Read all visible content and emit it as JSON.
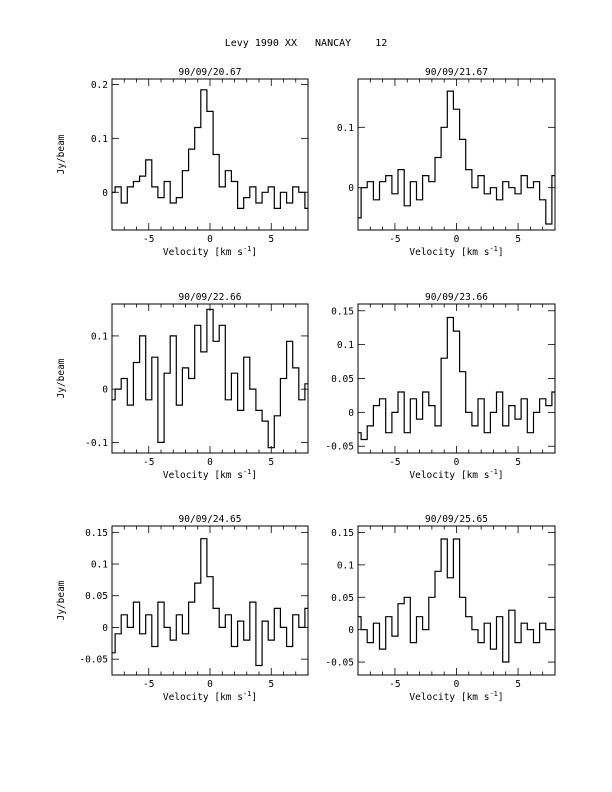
{
  "figure_title": "Levy 1990 XX   NANCAY    12",
  "chart_data": [
    {
      "type": "line",
      "title": "90/09/20.67",
      "xlabel": "Velocity [km s",
      "xlabel_sup": "-1",
      "xlabel_close": "]",
      "ylabel": "Jy/beam",
      "xlim": [
        -8,
        8
      ],
      "ylim": [
        -0.07,
        0.21
      ],
      "xticks": [
        -5,
        0,
        5
      ],
      "yticks": [
        0,
        0.1,
        0.2
      ],
      "ytick_labels": [
        "0",
        "0.1",
        "0.2"
      ],
      "series": [
        {
          "x": [
            -8,
            -7.5,
            -7,
            -6.5,
            -6,
            -5.5,
            -5,
            -4.5,
            -4,
            -3.5,
            -3,
            -2.5,
            -2,
            -1.5,
            -1,
            -0.5,
            0,
            0.5,
            1,
            1.5,
            2,
            2.5,
            3,
            3.5,
            4,
            4.5,
            5,
            5.5,
            6,
            6.5,
            7,
            7.5,
            8
          ],
          "y": [
            0.0,
            0.01,
            -0.02,
            0.01,
            0.02,
            0.03,
            0.06,
            0.01,
            -0.01,
            0.02,
            -0.02,
            -0.01,
            0.04,
            0.08,
            0.12,
            0.19,
            0.15,
            0.07,
            0.01,
            0.04,
            0.02,
            -0.03,
            -0.01,
            0.01,
            -0.02,
            0.0,
            0.01,
            -0.03,
            0.0,
            -0.02,
            0.01,
            0.0,
            -0.03
          ]
        }
      ]
    },
    {
      "type": "line",
      "title": "90/09/21.67",
      "xlabel": "Velocity [km s",
      "xlabel_sup": "-1",
      "xlabel_close": "]",
      "ylabel": "",
      "xlim": [
        -8,
        8
      ],
      "ylim": [
        -0.07,
        0.18
      ],
      "xticks": [
        -5,
        0,
        5
      ],
      "yticks": [
        0,
        0.1
      ],
      "ytick_labels": [
        "0",
        "0.1"
      ],
      "series": [
        {
          "x": [
            -8,
            -7.5,
            -7,
            -6.5,
            -6,
            -5.5,
            -5,
            -4.5,
            -4,
            -3.5,
            -3,
            -2.5,
            -2,
            -1.5,
            -1,
            -0.5,
            0,
            0.5,
            1,
            1.5,
            2,
            2.5,
            3,
            3.5,
            4,
            4.5,
            5,
            5.5,
            6,
            6.5,
            7,
            7.5,
            8
          ],
          "y": [
            -0.05,
            0.0,
            0.01,
            -0.02,
            0.01,
            0.02,
            -0.01,
            0.03,
            -0.03,
            0.01,
            -0.02,
            0.02,
            0.01,
            0.05,
            0.1,
            0.16,
            0.13,
            0.08,
            0.03,
            0.0,
            0.02,
            -0.01,
            0.0,
            -0.02,
            0.01,
            0.0,
            -0.01,
            0.02,
            0.0,
            0.01,
            -0.02,
            -0.06,
            0.02
          ]
        }
      ]
    },
    {
      "type": "line",
      "title": "90/09/22.66",
      "xlabel": "Velocity [km s",
      "xlabel_sup": "-1",
      "xlabel_close": "]",
      "ylabel": "Jy/beam",
      "xlim": [
        -8,
        8
      ],
      "ylim": [
        -0.12,
        0.16
      ],
      "xticks": [
        -5,
        0,
        5
      ],
      "yticks": [
        -0.1,
        0,
        0.1
      ],
      "ytick_labels": [
        "-0.1",
        "0",
        "0.1"
      ],
      "series": [
        {
          "x": [
            -8,
            -7.5,
            -7,
            -6.5,
            -6,
            -5.5,
            -5,
            -4.5,
            -4,
            -3.5,
            -3,
            -2.5,
            -2,
            -1.5,
            -1,
            -0.5,
            0,
            0.5,
            1,
            1.5,
            2,
            2.5,
            3,
            3.5,
            4,
            4.5,
            5,
            5.5,
            6,
            6.5,
            7,
            7.5,
            8
          ],
          "y": [
            -0.02,
            0.0,
            0.02,
            -0.03,
            0.05,
            0.1,
            -0.02,
            0.06,
            -0.1,
            0.03,
            0.1,
            -0.03,
            0.04,
            0.02,
            0.12,
            0.07,
            0.15,
            0.09,
            0.12,
            -0.02,
            0.03,
            -0.04,
            0.06,
            0.0,
            -0.04,
            -0.06,
            -0.11,
            -0.05,
            0.02,
            0.09,
            0.04,
            -0.02,
            0.01
          ]
        }
      ]
    },
    {
      "type": "line",
      "title": "90/09/23.66",
      "xlabel": "Velocity [km s",
      "xlabel_sup": "-1",
      "xlabel_close": "]",
      "ylabel": "",
      "xlim": [
        -8,
        8
      ],
      "ylim": [
        -0.06,
        0.16
      ],
      "xticks": [
        -5,
        0,
        5
      ],
      "yticks": [
        -0.05,
        0,
        0.05,
        0.1,
        0.15
      ],
      "ytick_labels": [
        "-0.05",
        "0",
        "0.05",
        "0.1",
        "0.15"
      ],
      "series": [
        {
          "x": [
            -8,
            -7.5,
            -7,
            -6.5,
            -6,
            -5.5,
            -5,
            -4.5,
            -4,
            -3.5,
            -3,
            -2.5,
            -2,
            -1.5,
            -1,
            -0.5,
            0,
            0.5,
            1,
            1.5,
            2,
            2.5,
            3,
            3.5,
            4,
            4.5,
            5,
            5.5,
            6,
            6.5,
            7,
            7.5,
            8
          ],
          "y": [
            -0.03,
            -0.04,
            -0.02,
            0.01,
            0.02,
            -0.03,
            0.0,
            0.03,
            -0.03,
            0.02,
            -0.01,
            0.03,
            0.01,
            -0.02,
            0.08,
            0.14,
            0.12,
            0.06,
            0.0,
            -0.02,
            0.02,
            -0.03,
            0.0,
            0.03,
            -0.02,
            0.01,
            -0.01,
            0.02,
            -0.03,
            0.0,
            0.02,
            0.01,
            0.03
          ]
        }
      ]
    },
    {
      "type": "line",
      "title": "90/09/24.65",
      "xlabel": "Velocity [km s",
      "xlabel_sup": "-1",
      "xlabel_close": "]",
      "ylabel": "Jy/beam",
      "xlim": [
        -8,
        8
      ],
      "ylim": [
        -0.075,
        0.16
      ],
      "xticks": [
        -5,
        0,
        5
      ],
      "yticks": [
        -0.05,
        0,
        0.05,
        0.1,
        0.15
      ],
      "ytick_labels": [
        "-0.05",
        "0",
        "0.05",
        "0.1",
        "0.15"
      ],
      "series": [
        {
          "x": [
            -8,
            -7.5,
            -7,
            -6.5,
            -6,
            -5.5,
            -5,
            -4.5,
            -4,
            -3.5,
            -3,
            -2.5,
            -2,
            -1.5,
            -1,
            -0.5,
            0,
            0.5,
            1,
            1.5,
            2,
            2.5,
            3,
            3.5,
            4,
            4.5,
            5,
            5.5,
            6,
            6.5,
            7,
            7.5,
            8
          ],
          "y": [
            -0.04,
            -0.01,
            0.02,
            0.0,
            0.04,
            -0.01,
            0.02,
            -0.03,
            0.04,
            0.0,
            -0.02,
            0.02,
            -0.01,
            0.04,
            0.07,
            0.14,
            0.08,
            0.03,
            0.0,
            0.02,
            -0.03,
            0.01,
            -0.02,
            0.04,
            -0.06,
            0.01,
            -0.02,
            0.03,
            0.0,
            -0.03,
            0.02,
            0.0,
            0.03
          ]
        }
      ]
    },
    {
      "type": "line",
      "title": "90/09/25.65",
      "xlabel": "Velocity [km s",
      "xlabel_sup": "-1",
      "xlabel_close": "]",
      "ylabel": "",
      "xlim": [
        -8,
        8
      ],
      "ylim": [
        -0.07,
        0.16
      ],
      "xticks": [
        -5,
        0,
        5
      ],
      "yticks": [
        -0.05,
        0,
        0.05,
        0.1,
        0.15
      ],
      "ytick_labels": [
        "-0.05",
        "0",
        "0.05",
        "0.1",
        "0.15"
      ],
      "series": [
        {
          "x": [
            -8,
            -7.5,
            -7,
            -6.5,
            -6,
            -5.5,
            -5,
            -4.5,
            -4,
            -3.5,
            -3,
            -2.5,
            -2,
            -1.5,
            -1,
            -0.5,
            0,
            0.5,
            1,
            1.5,
            2,
            2.5,
            3,
            3.5,
            4,
            4.5,
            5,
            5.5,
            6,
            6.5,
            7,
            7.5,
            8
          ],
          "y": [
            0.02,
            0.0,
            -0.02,
            0.01,
            -0.03,
            0.02,
            -0.01,
            0.04,
            0.05,
            -0.02,
            0.02,
            0.0,
            0.05,
            0.09,
            0.14,
            0.08,
            0.14,
            0.05,
            0.02,
            0.0,
            -0.02,
            0.01,
            -0.03,
            0.02,
            -0.05,
            0.03,
            -0.02,
            0.01,
            0.0,
            -0.02,
            0.01,
            0.0,
            0.0
          ]
        }
      ]
    }
  ]
}
